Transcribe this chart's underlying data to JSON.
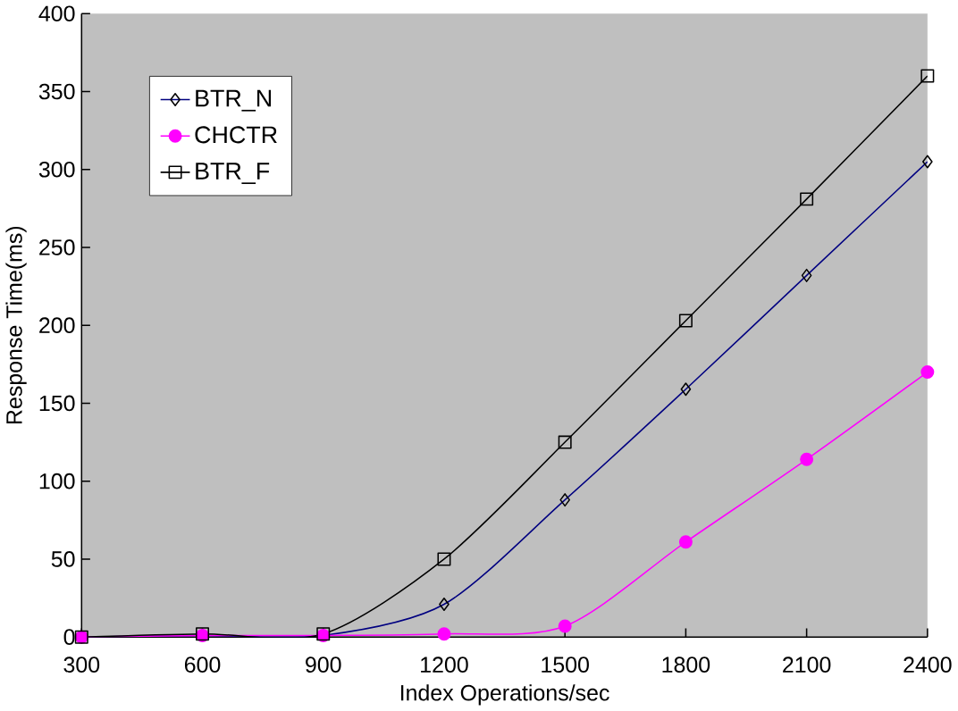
{
  "chart_data": {
    "type": "line",
    "xlabel": "Index Operations/sec",
    "ylabel": "Response Time(ms)",
    "x": [
      300,
      600,
      900,
      1200,
      1500,
      1800,
      2100,
      2400
    ],
    "xlim": [
      300,
      2400
    ],
    "xticks": [
      300,
      600,
      900,
      1200,
      1500,
      1800,
      2100,
      2400
    ],
    "ylim": [
      0,
      400
    ],
    "yticks": [
      0,
      50,
      100,
      150,
      200,
      250,
      300,
      350,
      400
    ],
    "grid": false,
    "legend": "top left",
    "line_style": "solid",
    "series": [
      {
        "name": "BTR_N",
        "color": "#000080",
        "marker": "diamond",
        "values": [
          0,
          1,
          1,
          21,
          88,
          159,
          232,
          305
        ]
      },
      {
        "name": "CHCTR",
        "color": "#ff00ff",
        "marker": "circle",
        "values": [
          0,
          1,
          1,
          2,
          7,
          61,
          114,
          170
        ]
      },
      {
        "name": "BTR_F",
        "color": "#000000",
        "marker": "square",
        "values": [
          0,
          2,
          2,
          50,
          125,
          203,
          281,
          360
        ]
      }
    ]
  }
}
